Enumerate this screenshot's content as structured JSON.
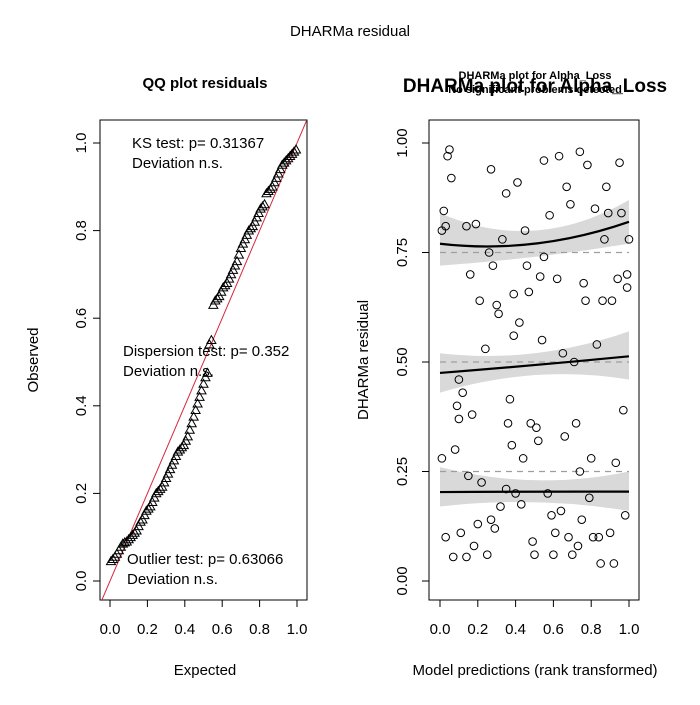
{
  "page_title": "DHARMa residual",
  "chart_data": [
    {
      "type": "scatter",
      "title": "QQ plot residuals",
      "xlabel": "Expected",
      "ylabel": "Observed",
      "xlim": [
        0,
        1
      ],
      "ylim": [
        0,
        1
      ],
      "x_ticks": [
        "0.0",
        "0.2",
        "0.4",
        "0.6",
        "0.8",
        "1.0"
      ],
      "y_ticks": [
        "0.0",
        "0.2",
        "0.4",
        "0.6",
        "0.8",
        "1.0"
      ],
      "marker": "triangle",
      "reference_line_color": "#d7263d",
      "annotations": {
        "ks_test": "KS test: p= 0.31367",
        "ks_deviation": "Deviation  n.s.",
        "dispersion_test": "Dispersion test: p= 0.352",
        "dispersion_deviation": "Deviation  n.s.",
        "outlier_test": "Outlier test: p= 0.63066",
        "outlier_deviation": "Deviation  n.s."
      },
      "observed_quantiles": [
        0.045,
        0.05,
        0.055,
        0.062,
        0.07,
        0.078,
        0.085,
        0.088,
        0.09,
        0.095,
        0.1,
        0.105,
        0.11,
        0.115,
        0.125,
        0.135,
        0.14,
        0.15,
        0.16,
        0.165,
        0.17,
        0.18,
        0.19,
        0.2,
        0.205,
        0.21,
        0.215,
        0.225,
        0.235,
        0.245,
        0.255,
        0.265,
        0.275,
        0.285,
        0.295,
        0.3,
        0.305,
        0.31,
        0.32,
        0.33,
        0.345,
        0.36,
        0.375,
        0.39,
        0.405,
        0.42,
        0.435,
        0.45,
        0.465,
        0.475,
        0.54,
        0.55,
        0.63,
        0.64,
        0.645,
        0.65,
        0.66,
        0.67,
        0.675,
        0.68,
        0.69,
        0.7,
        0.71,
        0.72,
        0.73,
        0.745,
        0.76,
        0.77,
        0.78,
        0.79,
        0.8,
        0.805,
        0.81,
        0.82,
        0.83,
        0.84,
        0.85,
        0.855,
        0.86,
        0.885,
        0.89,
        0.895,
        0.9,
        0.91,
        0.92,
        0.93,
        0.94,
        0.95,
        0.955,
        0.96,
        0.965,
        0.97,
        0.975,
        0.98,
        0.985
      ]
    },
    {
      "type": "scatter",
      "title": "DHARMa plot for Alpha_Loss",
      "subtitle": "No significant problems detected",
      "xlabel": "Model predictions (rank transformed)",
      "ylabel": "DHARMa residual",
      "xlim": [
        0,
        1
      ],
      "ylim": [
        0,
        1
      ],
      "x_ticks": [
        "0.0",
        "0.2",
        "0.4",
        "0.6",
        "0.8",
        "1.0"
      ],
      "y_ticks": [
        "0.00",
        "0.25",
        "0.50",
        "0.75",
        "1.00"
      ],
      "marker": "circle",
      "reference_lines": [
        0.25,
        0.5,
        0.75
      ],
      "quantile_fits": [
        {
          "quantile": 0.25,
          "x": [
            0,
            0.5,
            1
          ],
          "y": [
            0.203,
            0.204,
            0.204
          ],
          "ci_lower": [
            0.17,
            0.18,
            0.16
          ],
          "ci_upper": [
            0.26,
            0.23,
            0.25
          ]
        },
        {
          "quantile": 0.5,
          "x": [
            0,
            0.5,
            1
          ],
          "y": [
            0.475,
            0.493,
            0.513
          ],
          "ci_lower": [
            0.43,
            0.47,
            0.46
          ],
          "ci_upper": [
            0.52,
            0.52,
            0.57
          ]
        },
        {
          "quantile": 0.75,
          "x": [
            0,
            0.5,
            1
          ],
          "y": [
            0.77,
            0.77,
            0.82
          ],
          "ci_lower": [
            0.72,
            0.74,
            0.77
          ],
          "ci_upper": [
            0.84,
            0.8,
            0.87
          ]
        }
      ],
      "points": [
        [
          0.01,
          0.28
        ],
        [
          0.01,
          0.8
        ],
        [
          0.02,
          0.845
        ],
        [
          0.03,
          0.81
        ],
        [
          0.03,
          0.1
        ],
        [
          0.04,
          0.97
        ],
        [
          0.05,
          0.985
        ],
        [
          0.06,
          0.92
        ],
        [
          0.07,
          0.055
        ],
        [
          0.08,
          0.3
        ],
        [
          0.09,
          0.4
        ],
        [
          0.1,
          0.46
        ],
        [
          0.1,
          0.37
        ],
        [
          0.11,
          0.11
        ],
        [
          0.12,
          0.43
        ],
        [
          0.14,
          0.055
        ],
        [
          0.14,
          0.81
        ],
        [
          0.15,
          0.24
        ],
        [
          0.16,
          0.7
        ],
        [
          0.17,
          0.38
        ],
        [
          0.18,
          0.08
        ],
        [
          0.19,
          0.815
        ],
        [
          0.2,
          0.13
        ],
        [
          0.21,
          0.64
        ],
        [
          0.22,
          0.225
        ],
        [
          0.24,
          0.53
        ],
        [
          0.25,
          0.06
        ],
        [
          0.26,
          0.75
        ],
        [
          0.27,
          0.94
        ],
        [
          0.27,
          0.14
        ],
        [
          0.28,
          0.72
        ],
        [
          0.29,
          0.12
        ],
        [
          0.3,
          0.63
        ],
        [
          0.31,
          0.61
        ],
        [
          0.32,
          0.17
        ],
        [
          0.33,
          0.78
        ],
        [
          0.35,
          0.885
        ],
        [
          0.35,
          0.21
        ],
        [
          0.36,
          0.36
        ],
        [
          0.37,
          0.415
        ],
        [
          0.38,
          0.31
        ],
        [
          0.39,
          0.655
        ],
        [
          0.39,
          0.56
        ],
        [
          0.4,
          0.2
        ],
        [
          0.41,
          0.91
        ],
        [
          0.42,
          0.59
        ],
        [
          0.43,
          0.175
        ],
        [
          0.44,
          0.28
        ],
        [
          0.45,
          0.8
        ],
        [
          0.46,
          0.72
        ],
        [
          0.47,
          0.66
        ],
        [
          0.48,
          0.36
        ],
        [
          0.49,
          0.09
        ],
        [
          0.5,
          0.06
        ],
        [
          0.51,
          0.35
        ],
        [
          0.52,
          0.32
        ],
        [
          0.53,
          0.695
        ],
        [
          0.54,
          0.55
        ],
        [
          0.55,
          0.74
        ],
        [
          0.55,
          0.96
        ],
        [
          0.57,
          0.2
        ],
        [
          0.58,
          0.835
        ],
        [
          0.59,
          0.15
        ],
        [
          0.6,
          0.06
        ],
        [
          0.61,
          0.11
        ],
        [
          0.62,
          0.69
        ],
        [
          0.63,
          0.97
        ],
        [
          0.64,
          0.16
        ],
        [
          0.65,
          0.52
        ],
        [
          0.66,
          0.33
        ],
        [
          0.67,
          0.9
        ],
        [
          0.68,
          0.1
        ],
        [
          0.69,
          0.86
        ],
        [
          0.7,
          0.06
        ],
        [
          0.71,
          0.5
        ],
        [
          0.72,
          0.36
        ],
        [
          0.73,
          0.08
        ],
        [
          0.74,
          0.25
        ],
        [
          0.74,
          0.98
        ],
        [
          0.75,
          0.14
        ],
        [
          0.76,
          0.68
        ],
        [
          0.77,
          0.64
        ],
        [
          0.78,
          0.95
        ],
        [
          0.79,
          0.19
        ],
        [
          0.8,
          0.28
        ],
        [
          0.81,
          0.1
        ],
        [
          0.82,
          0.85
        ],
        [
          0.83,
          0.54
        ],
        [
          0.84,
          0.1
        ],
        [
          0.85,
          0.04
        ],
        [
          0.86,
          0.64
        ],
        [
          0.87,
          0.78
        ],
        [
          0.88,
          0.9
        ],
        [
          0.89,
          0.84
        ],
        [
          0.9,
          0.11
        ],
        [
          0.91,
          0.64
        ],
        [
          0.92,
          0.04
        ],
        [
          0.93,
          0.27
        ],
        [
          0.94,
          0.69
        ],
        [
          0.95,
          0.955
        ],
        [
          0.96,
          0.84
        ],
        [
          0.97,
          0.39
        ],
        [
          0.98,
          0.15
        ],
        [
          0.99,
          0.7
        ],
        [
          0.99,
          0.67
        ],
        [
          1.0,
          0.78
        ]
      ]
    }
  ]
}
